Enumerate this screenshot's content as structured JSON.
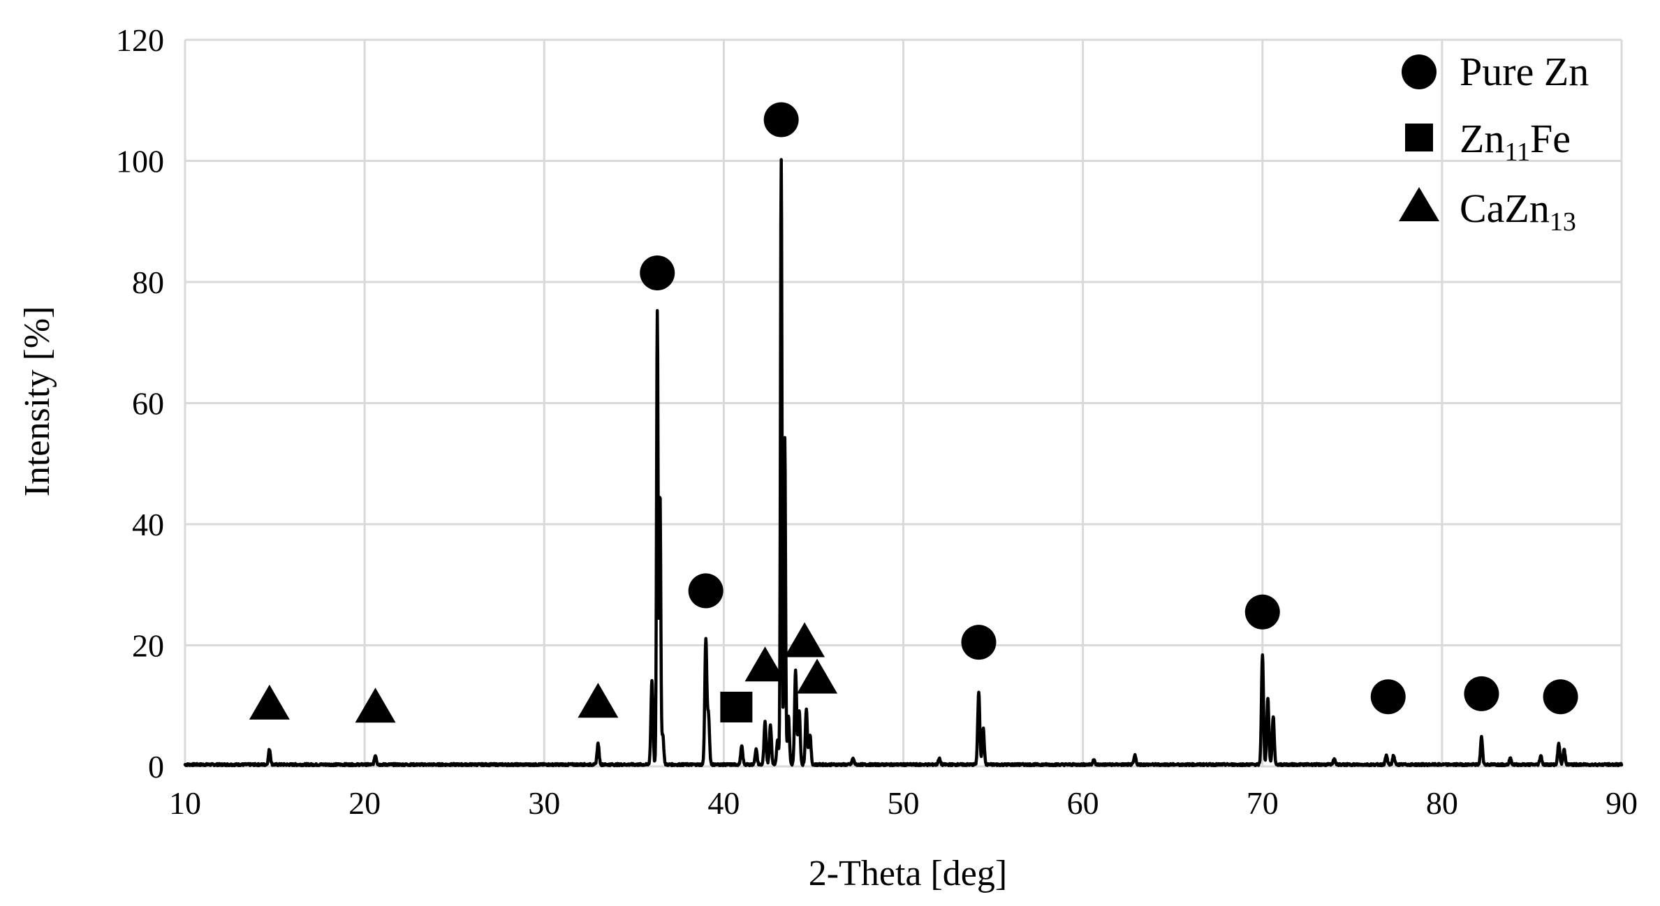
{
  "chart_data": {
    "type": "line",
    "title": "",
    "xlabel": "2-Theta [deg]",
    "ylabel": "Intensity [%]",
    "xlim": [
      10,
      90
    ],
    "ylim": [
      0,
      120
    ],
    "xticks": [
      10,
      20,
      30,
      40,
      50,
      60,
      70,
      80,
      90
    ],
    "yticks": [
      0,
      20,
      40,
      60,
      80,
      100,
      120
    ],
    "grid": true,
    "legend_position": "top-right",
    "legend": [
      {
        "marker": "circle",
        "label": "Pure Zn",
        "label_main": "Pure Zn",
        "label_sub": "",
        "label_tail": ""
      },
      {
        "marker": "square",
        "label": "Zn11Fe",
        "label_main": "Zn",
        "label_sub": "11",
        "label_tail": "Fe"
      },
      {
        "marker": "triangle",
        "label": "CaZn13",
        "label_main": "CaZn",
        "label_sub": "13",
        "label_tail": ""
      }
    ],
    "series": [
      {
        "peaks": [
          [
            14.7,
            2.5
          ],
          [
            20.6,
            1.5
          ],
          [
            33.0,
            3.5
          ],
          [
            36.0,
            14
          ],
          [
            36.3,
            75
          ],
          [
            36.45,
            45
          ],
          [
            36.6,
            5
          ],
          [
            39.0,
            20.5
          ],
          [
            39.15,
            8
          ],
          [
            41.0,
            3
          ],
          [
            41.8,
            2.5
          ],
          [
            42.3,
            7
          ],
          [
            42.6,
            6.5
          ],
          [
            43.0,
            4
          ],
          [
            43.2,
            100
          ],
          [
            43.4,
            54
          ],
          [
            43.6,
            8
          ],
          [
            44.0,
            15.5
          ],
          [
            44.2,
            9
          ],
          [
            44.6,
            9
          ],
          [
            44.8,
            5
          ],
          [
            47.2,
            1
          ],
          [
            52.0,
            1
          ],
          [
            54.2,
            12
          ],
          [
            54.45,
            6
          ],
          [
            60.6,
            0.8
          ],
          [
            62.9,
            1.5
          ],
          [
            70.0,
            18
          ],
          [
            70.3,
            11
          ],
          [
            70.6,
            8
          ],
          [
            74.0,
            1
          ],
          [
            76.9,
            1.5
          ],
          [
            77.3,
            1.5
          ],
          [
            82.2,
            4.5
          ],
          [
            83.8,
            1
          ],
          [
            85.5,
            1.5
          ],
          [
            86.5,
            3.5
          ],
          [
            86.8,
            2.5
          ]
        ],
        "baseline": 0.3
      }
    ],
    "phase_markers": [
      {
        "phase": "Pure Zn",
        "marker": "circle",
        "x": 36.3,
        "y": 81.5
      },
      {
        "phase": "Pure Zn",
        "marker": "circle",
        "x": 43.2,
        "y": 106.8
      },
      {
        "phase": "Pure Zn",
        "marker": "circle",
        "x": 39.0,
        "y": 29
      },
      {
        "phase": "Pure Zn",
        "marker": "circle",
        "x": 54.2,
        "y": 20.5
      },
      {
        "phase": "Pure Zn",
        "marker": "circle",
        "x": 70.0,
        "y": 25.5
      },
      {
        "phase": "Pure Zn",
        "marker": "circle",
        "x": 77.0,
        "y": 11.5
      },
      {
        "phase": "Pure Zn",
        "marker": "circle",
        "x": 82.2,
        "y": 12
      },
      {
        "phase": "Pure Zn",
        "marker": "circle",
        "x": 86.6,
        "y": 11.5
      },
      {
        "phase": "Zn11Fe",
        "marker": "square",
        "x": 40.7,
        "y": 9.8
      },
      {
        "phase": "CaZn13",
        "marker": "triangle",
        "x": 14.7,
        "y": 10.5
      },
      {
        "phase": "CaZn13",
        "marker": "triangle",
        "x": 20.6,
        "y": 10
      },
      {
        "phase": "CaZn13",
        "marker": "triangle",
        "x": 33.0,
        "y": 10.8
      },
      {
        "phase": "CaZn13",
        "marker": "triangle",
        "x": 42.3,
        "y": 16.8
      },
      {
        "phase": "CaZn13",
        "marker": "triangle",
        "x": 44.5,
        "y": 20.8
      },
      {
        "phase": "CaZn13",
        "marker": "triangle",
        "x": 45.2,
        "y": 14.8
      }
    ]
  }
}
